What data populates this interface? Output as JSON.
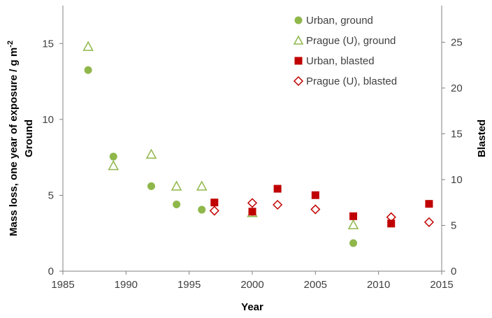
{
  "chart_data": {
    "type": "scatter",
    "xlabel": "Year",
    "ylabel_left_line1": "Mass loss, one year of exposure / g m",
    "ylabel_left_sup": "-2",
    "ylabel_left_line2": "Ground",
    "ylabel_right": "Blasted",
    "xlim": [
      1985,
      2015
    ],
    "xticks": [
      "1985",
      "1990",
      "1995",
      "2000",
      "2005",
      "2010",
      "2015"
    ],
    "ylim_left": [
      0,
      17.5
    ],
    "yticks_left": [
      "0",
      "5",
      "10",
      "15"
    ],
    "ylim_right": [
      0,
      29
    ],
    "yticks_right": [
      "0",
      "5",
      "10",
      "15",
      "20",
      "25"
    ],
    "grid": false,
    "legend_position": "top-right",
    "colors": {
      "green": "#8fb74a",
      "red": "#c00000",
      "axis": "#808080"
    },
    "series": [
      {
        "name": "Urban, ground",
        "axis": "left",
        "marker": "filled-circle",
        "color": "#8fb74a",
        "points": [
          {
            "x": 1987,
            "y": 13.25
          },
          {
            "x": 1989,
            "y": 7.55
          },
          {
            "x": 1992,
            "y": 5.6
          },
          {
            "x": 1994,
            "y": 4.4
          },
          {
            "x": 1996,
            "y": 4.05
          },
          {
            "x": 2000,
            "y": 3.9
          },
          {
            "x": 2008,
            "y": 1.85
          }
        ]
      },
      {
        "name": "Prague (U), ground",
        "axis": "left",
        "marker": "open-triangle",
        "color": "#8fb74a",
        "points": [
          {
            "x": 1987,
            "y": 14.8
          },
          {
            "x": 1989,
            "y": 6.95
          },
          {
            "x": 1992,
            "y": 7.7
          },
          {
            "x": 1994,
            "y": 5.6
          },
          {
            "x": 1996,
            "y": 5.6
          },
          {
            "x": 2000,
            "y": 3.85
          },
          {
            "x": 2008,
            "y": 3.05
          }
        ]
      },
      {
        "name": "Urban, blasted",
        "axis": "right",
        "marker": "filled-square",
        "color": "#c00000",
        "points": [
          {
            "x": 1997,
            "y": 7.5
          },
          {
            "x": 2000,
            "y": 6.5
          },
          {
            "x": 2002,
            "y": 9.0
          },
          {
            "x": 2005,
            "y": 8.3
          },
          {
            "x": 2008,
            "y": 6.0
          },
          {
            "x": 2011,
            "y": 5.2
          },
          {
            "x": 2014,
            "y": 7.35
          }
        ]
      },
      {
        "name": "Prague (U), blasted",
        "axis": "right",
        "marker": "open-diamond",
        "color": "#c00000",
        "points": [
          {
            "x": 1997,
            "y": 6.6
          },
          {
            "x": 2000,
            "y": 7.45
          },
          {
            "x": 2002,
            "y": 7.25
          },
          {
            "x": 2005,
            "y": 6.75
          },
          {
            "x": 2011,
            "y": 5.9
          },
          {
            "x": 2014,
            "y": 5.35
          }
        ]
      }
    ]
  }
}
